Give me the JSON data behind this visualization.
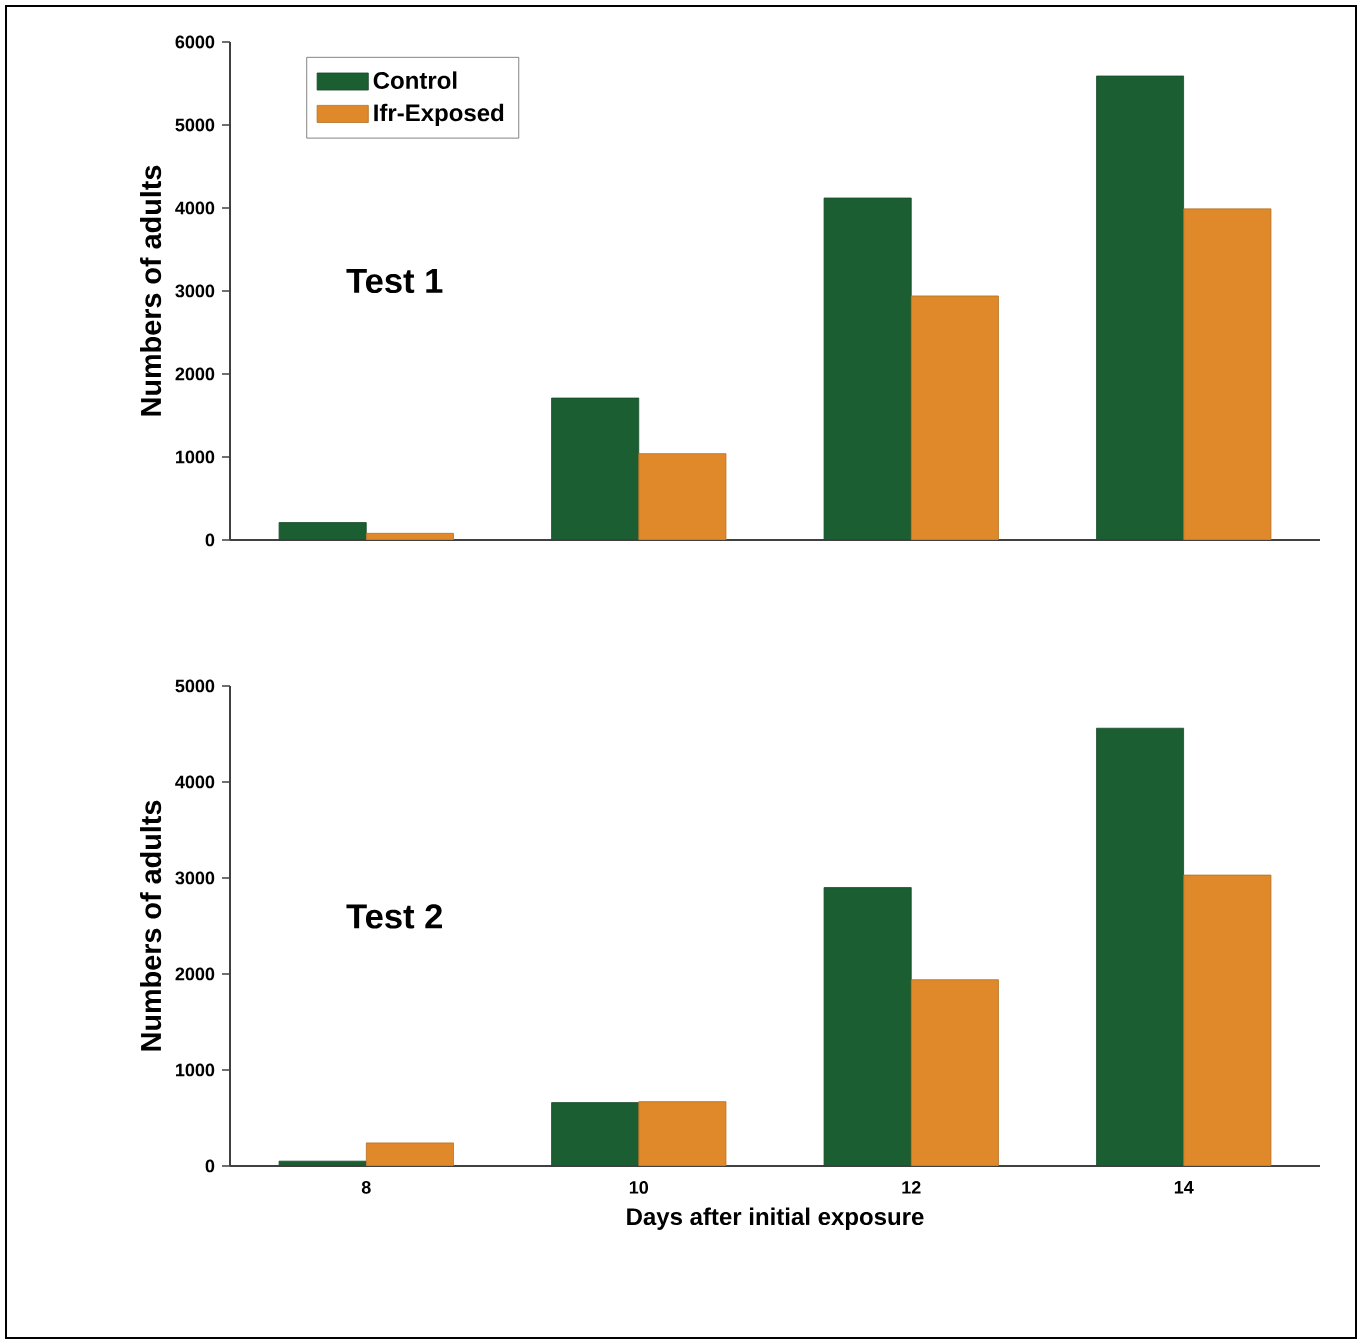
{
  "chart_data": [
    {
      "type": "bar",
      "title": "Test 1",
      "ylabel": "Numbers of adults",
      "categories": [
        "8",
        "10",
        "12",
        "14"
      ],
      "series": [
        {
          "name": "Control",
          "color": "#1a5e32",
          "values": [
            210,
            1710,
            4120,
            5590
          ]
        },
        {
          "name": "Ifr-Exposed",
          "color": "#e0892a",
          "values": [
            80,
            1040,
            2940,
            3990
          ]
        }
      ],
      "ylim": [
        0,
        6000
      ],
      "yticks": [
        0,
        1000,
        2000,
        3000,
        4000,
        5000,
        6000
      ],
      "legend": "top left",
      "tick_labels": "y"
    },
    {
      "type": "bar",
      "title": "Test 2",
      "ylabel": "Numbers of adults",
      "xlabel": "Days after initial exposure",
      "categories": [
        "8",
        "10",
        "12",
        "14"
      ],
      "series": [
        {
          "color": "#1a5e32",
          "values": [
            50,
            660,
            2900,
            4560
          ]
        },
        {
          "color": "#e0892a",
          "values": [
            240,
            670,
            1940,
            3030
          ]
        }
      ],
      "ylim": [
        0,
        5000
      ],
      "yticks": [
        0,
        1000,
        2000,
        3000,
        4000,
        5000
      ]
    }
  ]
}
